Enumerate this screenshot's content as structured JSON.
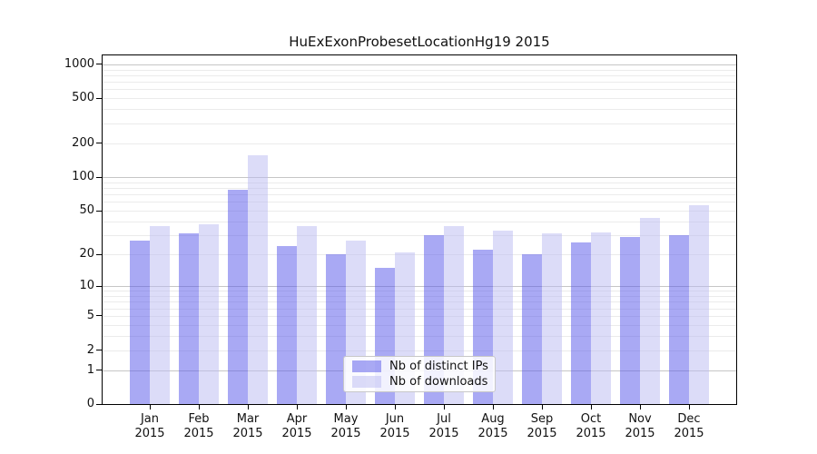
{
  "chart_data": {
    "type": "bar",
    "title": "HuExExonProbesetLocationHg19 2015",
    "y_scale": "log10(1+x)",
    "grid": true,
    "legend_position": "lower center inside plot",
    "categories": [
      "Jan",
      "Feb",
      "Mar",
      "Apr",
      "May",
      "Jun",
      "Jul",
      "Aug",
      "Sep",
      "Oct",
      "Nov",
      "Dec"
    ],
    "year_label": "2015",
    "series": [
      {
        "name": "Nb of distinct IPs",
        "color": "#5353e9",
        "fill_alpha": 0.5,
        "values": [
          27,
          31,
          77,
          24,
          20,
          15,
          30,
          22,
          20,
          26,
          29,
          30
        ]
      },
      {
        "name": "Nb of downloads",
        "color": "#b9b9f1",
        "fill_alpha": 0.5,
        "values": [
          36,
          38,
          156,
          36,
          27,
          21,
          36,
          33,
          31,
          32,
          43,
          56
        ]
      }
    ],
    "y_axis": {
      "tick_labels": [
        0,
        1,
        2,
        5,
        10,
        20,
        50,
        100,
        200,
        500,
        1000
      ],
      "major_gridlines": [
        1,
        10,
        100,
        1000
      ],
      "minor_gridlines": [
        2,
        3,
        4,
        5,
        6,
        7,
        8,
        9,
        20,
        30,
        40,
        50,
        60,
        70,
        80,
        90,
        200,
        300,
        400,
        500,
        600,
        700,
        800,
        900
      ],
      "top_value": 1000
    }
  }
}
